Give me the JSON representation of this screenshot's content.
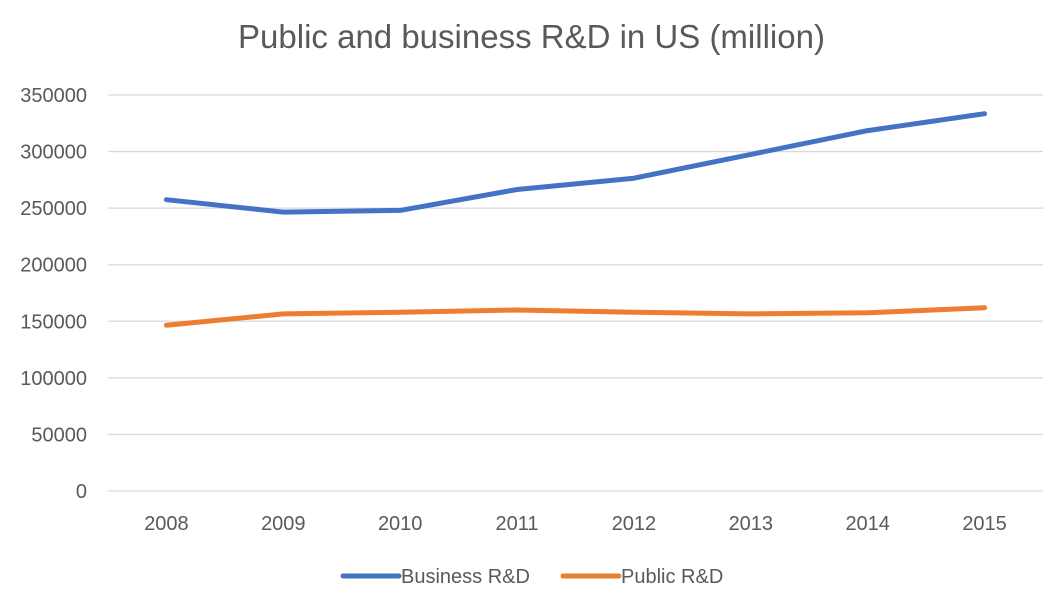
{
  "chart_data": {
    "type": "line",
    "title": "Public and business R&D in US (million)",
    "xlabel": "",
    "ylabel": "",
    "categories": [
      "2008",
      "2009",
      "2010",
      "2011",
      "2012",
      "2013",
      "2014",
      "2015"
    ],
    "ylim": [
      0,
      350000
    ],
    "yticks": [
      0,
      50000,
      100000,
      150000,
      200000,
      250000,
      300000,
      350000
    ],
    "grid": true,
    "legend": "bottom",
    "series": [
      {
        "name": "Business R&D",
        "color": "#4472c4",
        "values": [
          257500,
          246500,
          248000,
          266500,
          276500,
          297500,
          318500,
          333500
        ]
      },
      {
        "name": "Public R&D",
        "color": "#ed7d31",
        "values": [
          146500,
          156500,
          158000,
          160000,
          158000,
          156500,
          157500,
          162000
        ]
      }
    ]
  }
}
